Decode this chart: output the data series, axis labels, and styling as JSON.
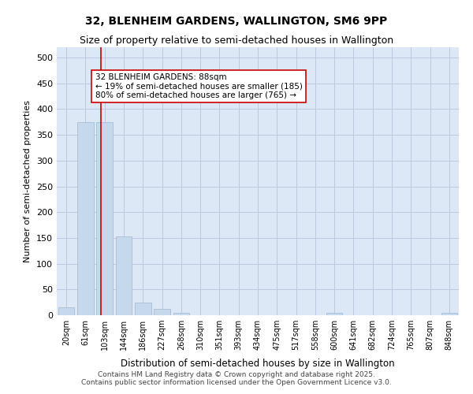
{
  "title1": "32, BLENHEIM GARDENS, WALLINGTON, SM6 9PP",
  "title2": "Size of property relative to semi-detached houses in Wallington",
  "xlabel": "Distribution of semi-detached houses by size in Wallington",
  "ylabel": "Number of semi-detached properties",
  "bins": [
    "20sqm",
    "61sqm",
    "103sqm",
    "144sqm",
    "186sqm",
    "227sqm",
    "268sqm",
    "310sqm",
    "351sqm",
    "393sqm",
    "434sqm",
    "475sqm",
    "517sqm",
    "558sqm",
    "600sqm",
    "641sqm",
    "682sqm",
    "724sqm",
    "765sqm",
    "807sqm",
    "848sqm"
  ],
  "bar_heights": [
    15,
    375,
    375,
    153,
    24,
    12,
    4,
    0,
    0,
    0,
    0,
    0,
    0,
    0,
    4,
    0,
    0,
    0,
    0,
    0,
    4
  ],
  "bar_color": "#c5d8ec",
  "bar_edge_color": "#a0b8d0",
  "grid_color": "#c0c8e0",
  "background_color": "#dce8f5",
  "annotation_box_color": "#ffffff",
  "annotation_border_color": "#cc0000",
  "red_line_x": 1.82,
  "annotation_text_line1": "32 BLENHEIM GARDENS: 88sqm",
  "annotation_text_line2": "← 19% of semi-detached houses are smaller (185)",
  "annotation_text_line3": "80% of semi-detached houses are larger (765) →",
  "footer_line1": "Contains HM Land Registry data © Crown copyright and database right 2025.",
  "footer_line2": "Contains public sector information licensed under the Open Government Licence v3.0.",
  "ylim": [
    0,
    520
  ],
  "yticks": [
    0,
    50,
    100,
    150,
    200,
    250,
    300,
    350,
    400,
    450,
    500
  ]
}
